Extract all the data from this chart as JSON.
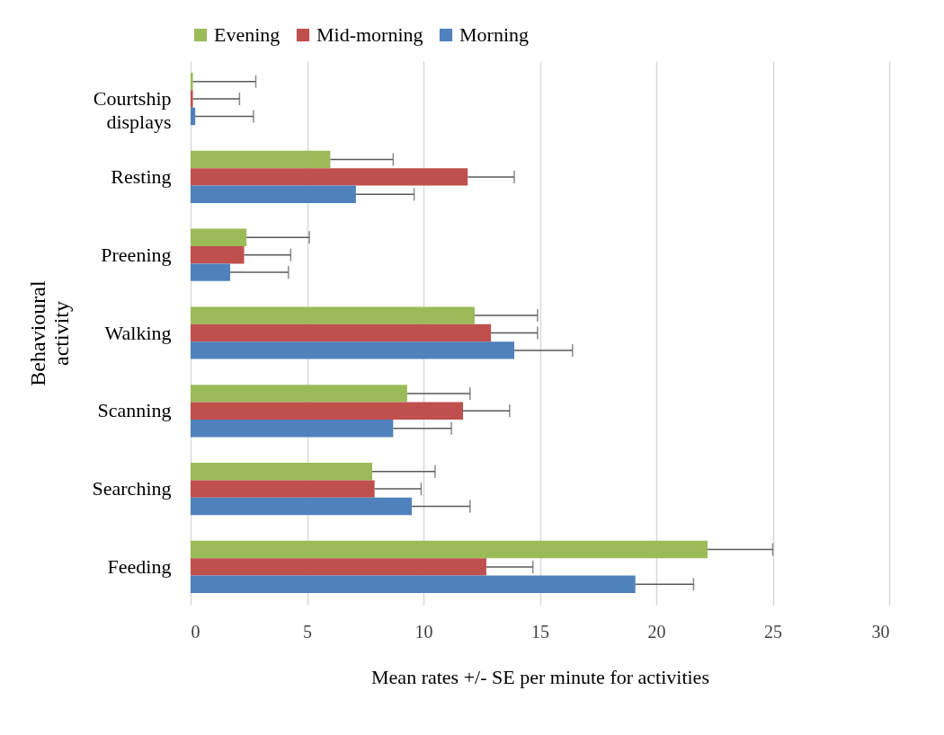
{
  "chart_data": {
    "type": "bar",
    "orientation": "horizontal",
    "xlabel": "Mean rates +/- SE   per minute for activities",
    "ylabel": "Behavioural activity",
    "categories": [
      "Courtship displays",
      "Resting",
      "Preening",
      "Walking",
      "Scanning",
      "Searching",
      "Feeding"
    ],
    "series": [
      {
        "name": "Evening",
        "color": "#9bbb59",
        "values": [
          0.1,
          6.0,
          2.4,
          12.2,
          9.3,
          7.8,
          22.2
        ],
        "errors": [
          [
            0.1,
            2.8
          ],
          [
            6.0,
            8.7
          ],
          [
            2.4,
            5.1
          ],
          [
            12.2,
            14.9
          ],
          [
            9.3,
            12.0
          ],
          [
            7.8,
            10.5
          ],
          [
            22.2,
            25.0
          ]
        ]
      },
      {
        "name": "Mid-morning",
        "color": "#c0504d",
        "values": [
          0.1,
          11.9,
          2.3,
          12.9,
          11.7,
          7.9,
          12.7
        ],
        "errors": [
          [
            0.1,
            2.1
          ],
          [
            11.9,
            13.9
          ],
          [
            2.3,
            4.3
          ],
          [
            12.9,
            14.9
          ],
          [
            11.7,
            13.7
          ],
          [
            7.9,
            9.9
          ],
          [
            12.7,
            14.7
          ]
        ]
      },
      {
        "name": "Morning",
        "color": "#4f81bd",
        "values": [
          0.2,
          7.1,
          1.7,
          13.9,
          8.7,
          9.5,
          19.1
        ],
        "errors": [
          [
            0.2,
            2.7
          ],
          [
            7.1,
            9.6
          ],
          [
            1.7,
            4.2
          ],
          [
            13.9,
            16.4
          ],
          [
            8.7,
            11.2
          ],
          [
            9.5,
            12.0
          ],
          [
            19.1,
            21.6
          ]
        ]
      }
    ],
    "xlim": [
      0,
      30
    ],
    "xticks": [
      0,
      5,
      10,
      15,
      20,
      25,
      30
    ],
    "grid": "x",
    "legend": "top"
  }
}
